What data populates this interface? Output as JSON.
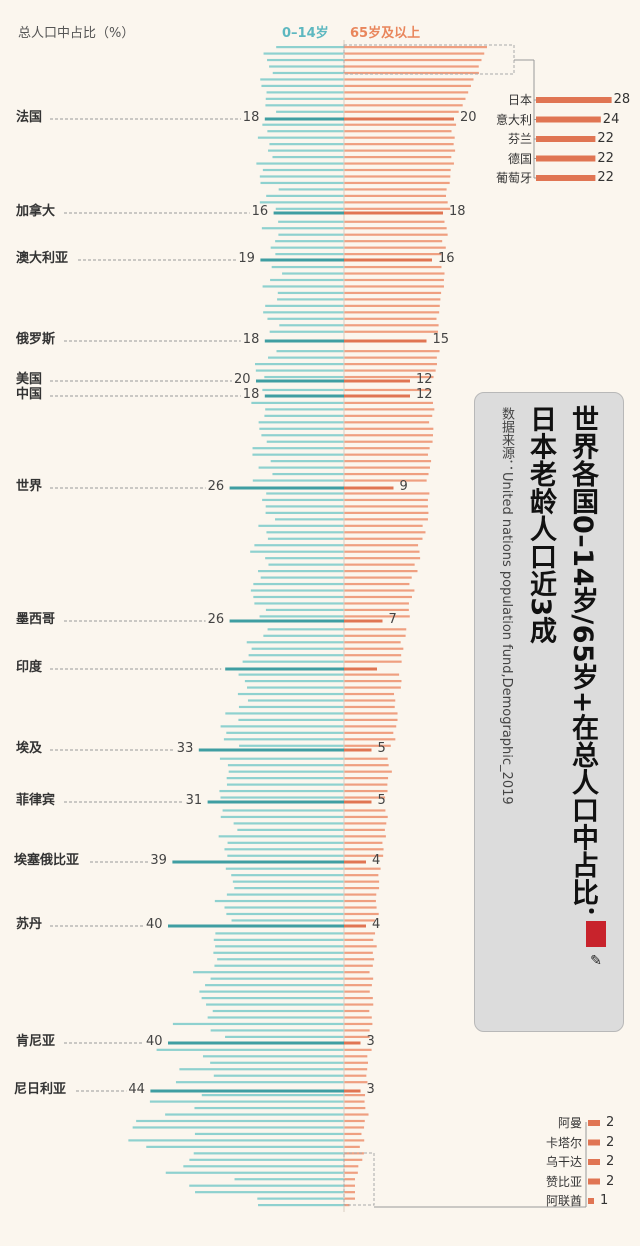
{
  "header": {
    "left_label": "总人口中占比（%）",
    "young_label": "0–14岁",
    "old_label": "65岁及以上"
  },
  "title": {
    "line1": "世界各国0–14岁/65岁+在总人口中占比：",
    "line2": "日本老龄人口近3成",
    "source": "数据来源：United nations population fund,Demographic_2019"
  },
  "colors": {
    "young_bar": "#8ed1cf",
    "young_highlight": "#3f9ea2",
    "old_bar": "#ef9f80",
    "old_highlight": "#e07553",
    "young_text": "#5db8c0",
    "old_text": "#e9865c",
    "background": "#fbf6ee"
  },
  "chart_data": {
    "type": "bar",
    "orientation": "horizontal-diverging",
    "unit": "%",
    "series": [
      {
        "name": "0–14岁"
      },
      {
        "name": "65岁及以上"
      }
    ],
    "labeled_countries": [
      {
        "name": "法国",
        "young": 18,
        "old": 20
      },
      {
        "name": "加拿大",
        "young": 16,
        "old": 18
      },
      {
        "name": "澳大利亚",
        "young": 19,
        "old": 16
      },
      {
        "name": "俄罗斯",
        "young": 18,
        "old": 15
      },
      {
        "name": "美国",
        "young": 20,
        "old": 12
      },
      {
        "name": "中国",
        "young": 18,
        "old": 12
      },
      {
        "name": "世界",
        "young": 26,
        "old": 9
      },
      {
        "name": "墨西哥",
        "young": 26,
        "old": 7
      },
      {
        "name": "印度",
        "young": 27,
        "old": 6
      },
      {
        "name": "埃及",
        "young": 33,
        "old": 5
      },
      {
        "name": "菲律宾",
        "young": 31,
        "old": 5
      },
      {
        "name": "埃塞俄比亚",
        "young": 39,
        "old": 4
      },
      {
        "name": "苏丹",
        "young": 40,
        "old": 4
      },
      {
        "name": "肯尼亚",
        "young": 40,
        "old": 3
      },
      {
        "name": "尼日利亚",
        "young": 44,
        "old": 3
      }
    ],
    "unlabeled_value_countries": [
      "印度"
    ],
    "top_old": [
      {
        "name": "日本",
        "old": 28
      },
      {
        "name": "意大利",
        "old": 24
      },
      {
        "name": "芬兰",
        "old": 22
      },
      {
        "name": "德国",
        "old": 22
      },
      {
        "name": "葡萄牙",
        "old": 22
      }
    ],
    "bottom_old": [
      {
        "name": "阿曼",
        "old": 2
      },
      {
        "name": "卡塔尔",
        "old": 2
      },
      {
        "name": "乌干达",
        "old": 2
      },
      {
        "name": "赞比亚",
        "old": 2
      },
      {
        "name": "阿联酋",
        "old": 1
      }
    ]
  }
}
